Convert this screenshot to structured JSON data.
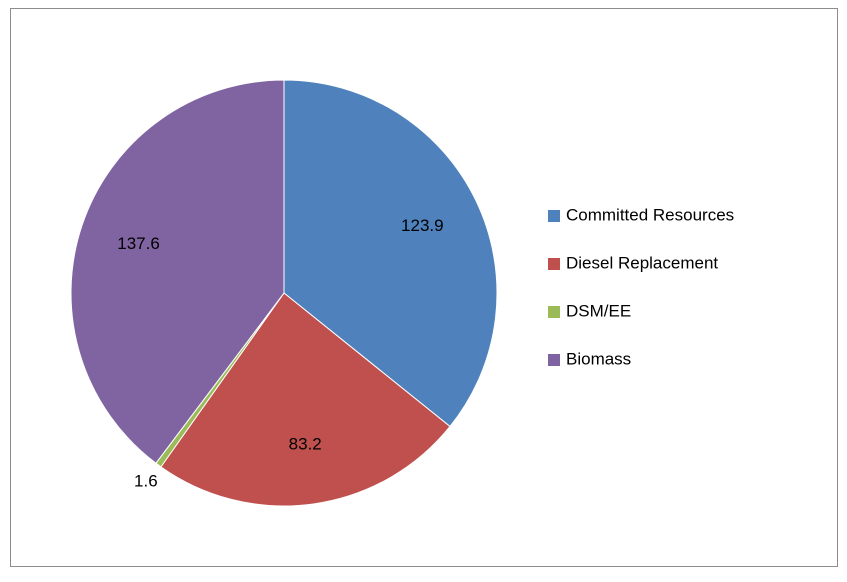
{
  "chart_data": {
    "type": "pie",
    "categories": [
      "Committed Resources",
      "Diesel Replacement",
      "DSM/EE",
      "Biomass"
    ],
    "values": [
      123.9,
      83.2,
      1.6,
      137.6
    ],
    "colors": [
      "#4f81bd",
      "#c0504d",
      "#9bbb59",
      "#8064a2"
    ],
    "legend": "right"
  }
}
